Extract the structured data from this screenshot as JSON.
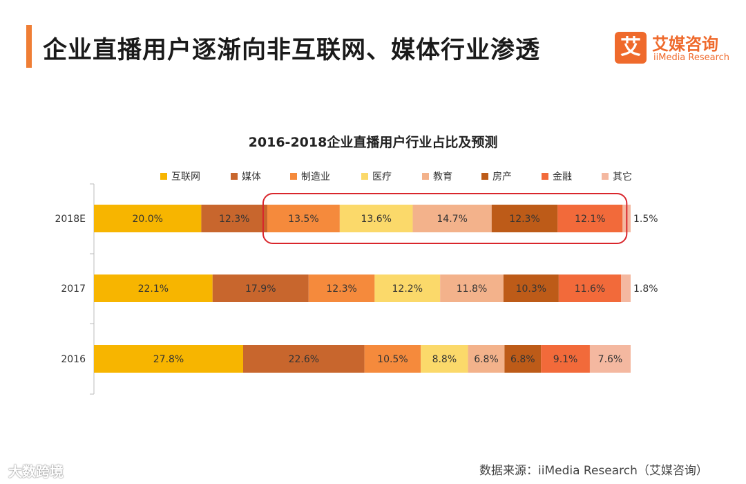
{
  "header": {
    "title": "企业直播用户逐渐向非互联网、媒体行业渗透",
    "logo_mark": "艾",
    "logo_cn": "艾媒咨询",
    "logo_en": "iiMedia Research"
  },
  "colors": {
    "accent": "#ef7e35",
    "highlight_box": "#d9262c"
  },
  "chart_data": {
    "type": "bar",
    "orientation": "horizontal",
    "stacked": true,
    "title": "2016-2018企业直播用户行业占比及预测",
    "categories": [
      "2018E",
      "2017",
      "2016"
    ],
    "series": [
      {
        "name": "互联网",
        "color": "#f7b500",
        "values": [
          20.0,
          22.1,
          27.8
        ],
        "labels": [
          "20.0%",
          "22.1%",
          "27.8%"
        ]
      },
      {
        "name": "媒体",
        "color": "#c8662d",
        "values": [
          12.3,
          17.9,
          22.6
        ],
        "labels": [
          "12.3%",
          "17.9%",
          "22.6%"
        ]
      },
      {
        "name": "制造业",
        "color": "#f58a3c",
        "values": [
          13.5,
          12.3,
          10.5
        ],
        "labels": [
          "13.5%",
          "12.3%",
          "10.5%"
        ]
      },
      {
        "name": "医疗",
        "color": "#fbd96a",
        "values": [
          13.6,
          12.2,
          8.8
        ],
        "labels": [
          "13.6%",
          "12.2%",
          "8.8%"
        ]
      },
      {
        "name": "教育",
        "color": "#f3b28b",
        "values": [
          14.7,
          11.8,
          6.8
        ],
        "labels": [
          "14.7%",
          "11.8%",
          "6.8%"
        ]
      },
      {
        "name": "房产",
        "color": "#bd5b18",
        "values": [
          12.3,
          10.3,
          6.8
        ],
        "labels": [
          "12.3%",
          "10.3%",
          "6.8%"
        ]
      },
      {
        "name": "金融",
        "color": "#f26a3a",
        "values": [
          12.1,
          11.6,
          9.1
        ],
        "labels": [
          "12.1%",
          "11.6%",
          "9.1%"
        ]
      },
      {
        "name": "其它",
        "color": "#f4b8a0",
        "values": [
          1.5,
          1.8,
          7.6
        ],
        "labels": [
          "1.5%",
          "1.8%",
          "7.6%"
        ]
      }
    ],
    "xlim": [
      0,
      100
    ],
    "grid": false,
    "legend": "top",
    "highlight": {
      "category": "2018E",
      "from_series": "制造业",
      "to_series": "金融"
    }
  },
  "footer": {
    "source": "数据来源：iiMedia Research（艾媒咨询）",
    "watermark": "大数跨境"
  }
}
